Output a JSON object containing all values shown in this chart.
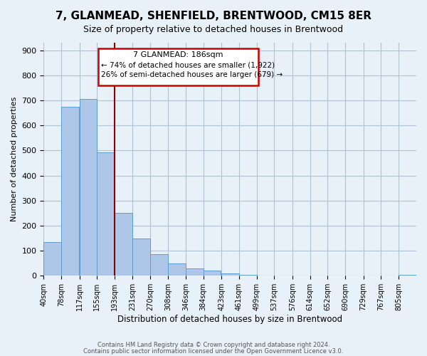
{
  "title": "7, GLANMEAD, SHENFIELD, BRENTWOOD, CM15 8ER",
  "subtitle": "Size of property relative to detached houses in Brentwood",
  "xlabel": "Distribution of detached houses by size in Brentwood",
  "ylabel": "Number of detached properties",
  "bin_labels": [
    "40sqm",
    "78sqm",
    "117sqm",
    "155sqm",
    "193sqm",
    "231sqm",
    "270sqm",
    "308sqm",
    "346sqm",
    "384sqm",
    "423sqm",
    "461sqm",
    "499sqm",
    "537sqm",
    "576sqm",
    "614sqm",
    "652sqm",
    "690sqm",
    "729sqm",
    "767sqm",
    "805sqm"
  ],
  "bar_heights": [
    135,
    675,
    705,
    493,
    252,
    150,
    85,
    50,
    29,
    20,
    10,
    5,
    2,
    1,
    0,
    0,
    0,
    0,
    0,
    0,
    3
  ],
  "bar_color": "#aec6e8",
  "bar_edge_color": "#5a9fd4",
  "property_label": "7 GLANMEAD: 186sqm",
  "annotation_line1": "← 74% of detached houses are smaller (1,922)",
  "annotation_line2": "26% of semi-detached houses are larger (679) →",
  "vline_color": "#8b0000",
  "box_edge_color": "#cc0000",
  "ylim": [
    0,
    930
  ],
  "yticks": [
    0,
    100,
    200,
    300,
    400,
    500,
    600,
    700,
    800,
    900
  ],
  "grid_color": "#b0c4d8",
  "bg_color": "#e8f0f8",
  "footnote1": "Contains HM Land Registry data © Crown copyright and database right 2024.",
  "footnote2": "Contains public sector information licensed under the Open Government Licence v3.0."
}
